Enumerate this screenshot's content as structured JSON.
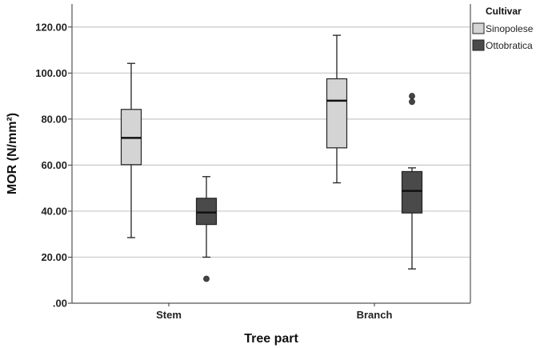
{
  "chart_data": {
    "type": "box",
    "xlabel": "Tree part",
    "ylabel": "MOR  (N/mm²)",
    "ylim": [
      0,
      130
    ],
    "yticks": [
      0,
      20,
      40,
      60,
      80,
      100,
      120
    ],
    "ytick_labels": [
      ".00",
      "20.00",
      "40.00",
      "60.00",
      "80.00",
      "100.00",
      "120.00"
    ],
    "grid": "horizontal",
    "categories": [
      "Stem",
      "Branch"
    ],
    "legend": {
      "title": "Cultivar",
      "placement": "top-right"
    },
    "colors": {
      "Sinopolese": "#d4d4d4",
      "Ottobratica": "#4a4a4a"
    },
    "series": [
      {
        "name": "Sinopolese",
        "boxes": [
          {
            "category": "Stem",
            "min": 28.5,
            "q1": 60.2,
            "median": 71.8,
            "q3": 84.2,
            "max": 104.2,
            "outliers": []
          },
          {
            "category": "Branch",
            "min": 52.3,
            "q1": 67.5,
            "median": 88.0,
            "q3": 97.5,
            "max": 116.4,
            "outliers": []
          }
        ]
      },
      {
        "name": "Ottobratica",
        "boxes": [
          {
            "category": "Stem",
            "min": 20.0,
            "q1": 34.2,
            "median": 39.4,
            "q3": 45.6,
            "max": 55.0,
            "outliers": [
              10.6
            ]
          },
          {
            "category": "Branch",
            "min": 14.9,
            "q1": 39.2,
            "median": 48.8,
            "q3": 57.2,
            "max": 58.8,
            "outliers": [
              87.5,
              90.0
            ]
          }
        ]
      }
    ]
  }
}
